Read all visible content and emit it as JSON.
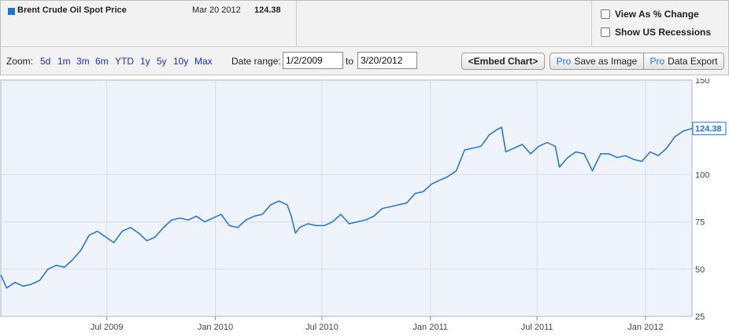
{
  "header": {
    "series_name": "Brent Crude Oil Spot Price",
    "last_date": "Mar 20 2012",
    "last_value": "124.38",
    "series_color": "#1a73d9"
  },
  "options": {
    "view_pct": "View As % Change",
    "show_recessions": "Show US Recessions",
    "view_pct_checked": false,
    "show_recessions_checked": false
  },
  "toolbar": {
    "zoom_label": "Zoom:",
    "zoom_options": [
      "5d",
      "1m",
      "3m",
      "6m",
      "YTD",
      "1y",
      "5y",
      "10y",
      "Max"
    ],
    "date_range_label": "Date range:",
    "start_date": "1/2/2009",
    "to_label": "to",
    "end_date": "3/20/2012",
    "embed_label": "<Embed Chart>",
    "pro_tag": "Pro",
    "save_image_label": "Save as Image",
    "data_export_label": "Data Export"
  },
  "chart_data": {
    "type": "line",
    "title": "",
    "xlabel": "",
    "ylabel": "",
    "ylim": [
      25,
      150
    ],
    "y_ticks": [
      25,
      50,
      75,
      100,
      150
    ],
    "x_range": [
      "2009-01-02",
      "2012-03-20"
    ],
    "x_ticks": [
      {
        "date": "2009-07-01",
        "label": "Jul 2009"
      },
      {
        "date": "2010-01-01",
        "label": "Jan 2010"
      },
      {
        "date": "2010-07-01",
        "label": "Jul 2010"
      },
      {
        "date": "2011-01-01",
        "label": "Jan 2011"
      },
      {
        "date": "2011-07-01",
        "label": "Jul 2011"
      },
      {
        "date": "2012-01-01",
        "label": "Jan 2012"
      }
    ],
    "grid": true,
    "background_color": "#eef3fc",
    "line_color": "#1a73d9",
    "last_value_label": "124.38",
    "series": [
      {
        "x": [
          "2009-01-02",
          "2009-01-12",
          "2009-01-26",
          "2009-02-09",
          "2009-02-23",
          "2009-03-09",
          "2009-03-23",
          "2009-04-06",
          "2009-04-20",
          "2009-05-04",
          "2009-05-18",
          "2009-06-01",
          "2009-06-15",
          "2009-06-29",
          "2009-07-13",
          "2009-07-27",
          "2009-08-10",
          "2009-08-24",
          "2009-09-07",
          "2009-09-21",
          "2009-10-05",
          "2009-10-19",
          "2009-11-02",
          "2009-11-16",
          "2009-11-30",
          "2009-12-14",
          "2009-12-28",
          "2010-01-11",
          "2010-01-25",
          "2010-02-08",
          "2010-02-22",
          "2010-03-08",
          "2010-03-22",
          "2010-04-05",
          "2010-04-19",
          "2010-05-03",
          "2010-05-10",
          "2010-05-17",
          "2010-05-24",
          "2010-06-07",
          "2010-06-21",
          "2010-07-05",
          "2010-07-19",
          "2010-08-02",
          "2010-08-16",
          "2010-08-30",
          "2010-09-13",
          "2010-09-27",
          "2010-10-11",
          "2010-10-25",
          "2010-11-08",
          "2010-11-22",
          "2010-12-06",
          "2010-12-20",
          "2011-01-03",
          "2011-01-17",
          "2011-01-31",
          "2011-02-14",
          "2011-02-28",
          "2011-03-14",
          "2011-03-28",
          "2011-04-11",
          "2011-04-25",
          "2011-05-02",
          "2011-05-09",
          "2011-05-23",
          "2011-06-06",
          "2011-06-20",
          "2011-07-04",
          "2011-07-18",
          "2011-08-01",
          "2011-08-08",
          "2011-08-22",
          "2011-09-05",
          "2011-09-19",
          "2011-10-03",
          "2011-10-17",
          "2011-10-31",
          "2011-11-14",
          "2011-11-28",
          "2011-12-12",
          "2011-12-26",
          "2012-01-09",
          "2012-01-23",
          "2012-02-06",
          "2012-02-20",
          "2012-03-05",
          "2012-03-20"
        ],
        "values": [
          47,
          40,
          43,
          41,
          42,
          44,
          50,
          52,
          51,
          55,
          60,
          68,
          70,
          67,
          64,
          70,
          72,
          69,
          65,
          67,
          72,
          76,
          77,
          76,
          78,
          75,
          77,
          79,
          73,
          72,
          76,
          78,
          79,
          84,
          86,
          84,
          78,
          69,
          72,
          74,
          73,
          73,
          75,
          79,
          74,
          75,
          76,
          78,
          82,
          83,
          84,
          85,
          90,
          91,
          95,
          97,
          99,
          102,
          113,
          114,
          115,
          121,
          124,
          125,
          112,
          114,
          116,
          111,
          115,
          117,
          115,
          104,
          109,
          112,
          111,
          102,
          111,
          111,
          109,
          110,
          108,
          107,
          112,
          110,
          114,
          120,
          123,
          124.38
        ]
      }
    ]
  }
}
